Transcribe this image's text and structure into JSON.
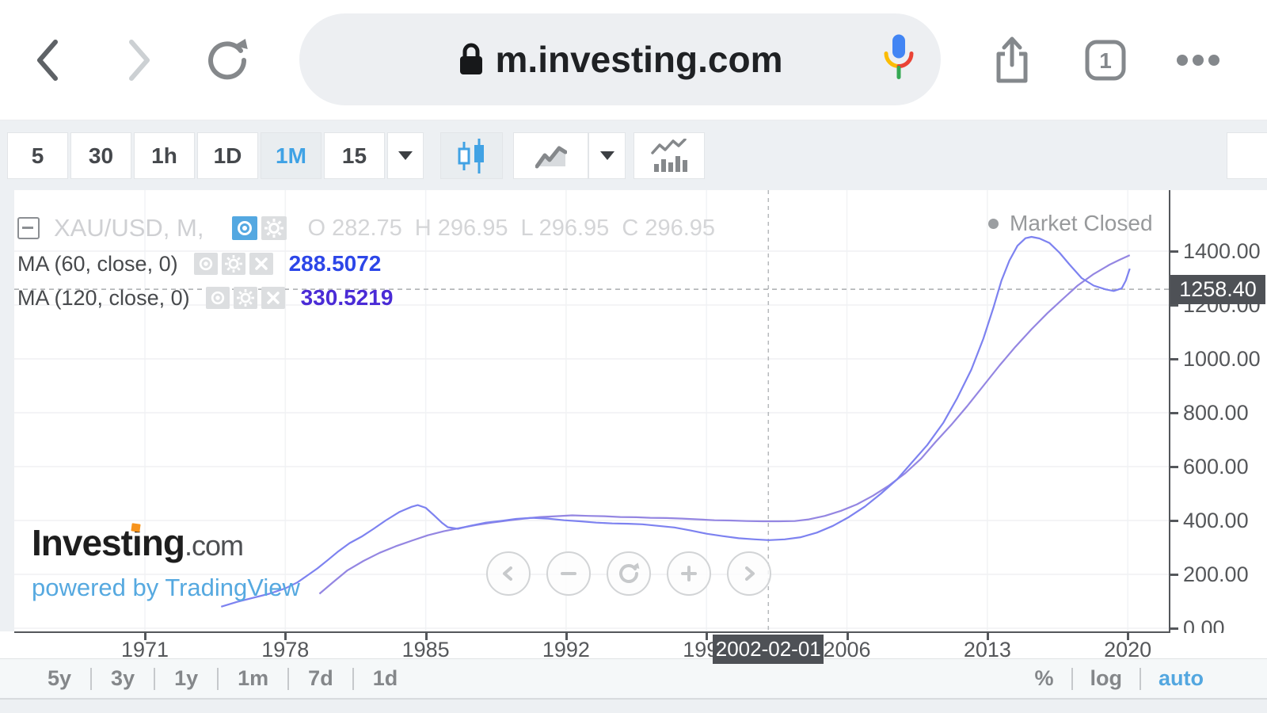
{
  "browser": {
    "url": "m.investing.com",
    "tab_count": "1"
  },
  "intervals_bar": {
    "items": [
      "5",
      "30",
      "1h",
      "1D",
      "1M",
      "15"
    ],
    "selected": "1M"
  },
  "legend": {
    "symbol": "XAU/USD, M,",
    "ohlc": [
      {
        "k": "O",
        "v": "282.75"
      },
      {
        "k": "H",
        "v": "296.95"
      },
      {
        "k": "L",
        "v": "296.95"
      },
      {
        "k": "C",
        "v": "296.95"
      }
    ],
    "indicators": [
      {
        "label": "MA (60, close, 0)",
        "value": "288.5072",
        "value_color": "#2c46e8"
      },
      {
        "label": "MA (120, close, 0)",
        "value": "330.5219",
        "value_color": "#4a2bd6"
      }
    ],
    "market_status": "Market Closed"
  },
  "watermark": {
    "brand_prefix": "Invest",
    "brand_i": "i",
    "brand_rest": "ng",
    "suffix": ".com",
    "powered": "powered by TradingView",
    "accent_color": "#f7941d"
  },
  "chart_data": {
    "type": "line",
    "title": "XAU/USD monthly chart with MA(60) and MA(120) overlays",
    "x_axis": {
      "tick_years": [
        1971,
        1978,
        1985,
        1992,
        1999,
        2006,
        2013,
        2020
      ],
      "range": [
        1964.5,
        2022
      ]
    },
    "y_axis": {
      "tick_values": [
        0,
        200,
        400,
        600,
        800,
        1000,
        1200,
        1400
      ],
      "tick_labels": [
        "0.00",
        "200.00",
        "400.00",
        "600.00",
        "800.00",
        "1000.00",
        "1200.00",
        "1400.00"
      ],
      "range": [
        -12,
        1626
      ]
    },
    "crosshair": {
      "date_label": "2002-02-01",
      "year": 2002.08,
      "price": 1258.4,
      "price_label": "1258.40"
    },
    "series": [
      {
        "name": "MA 60",
        "color": "#7d82f0",
        "points": [
          [
            1974.8,
            80
          ],
          [
            1975.6,
            98
          ],
          [
            1976.4,
            113
          ],
          [
            1977.2,
            128
          ],
          [
            1978.0,
            148
          ],
          [
            1978.6,
            170
          ],
          [
            1979.1,
            196
          ],
          [
            1979.6,
            222
          ],
          [
            1980.1,
            252
          ],
          [
            1980.6,
            283
          ],
          [
            1981.2,
            316
          ],
          [
            1981.8,
            340
          ],
          [
            1982.4,
            369
          ],
          [
            1983.0,
            400
          ],
          [
            1983.7,
            432
          ],
          [
            1984.3,
            451
          ],
          [
            1984.6,
            457
          ],
          [
            1985.0,
            447
          ],
          [
            1985.4,
            420
          ],
          [
            1985.8,
            392
          ],
          [
            1986.1,
            375
          ],
          [
            1986.6,
            369
          ],
          [
            1987.2,
            380
          ],
          [
            1988.0,
            392
          ],
          [
            1988.7,
            398
          ],
          [
            1989.5,
            406
          ],
          [
            1990.3,
            410
          ],
          [
            1991.1,
            407
          ],
          [
            1991.9,
            401
          ],
          [
            1992.7,
            397
          ],
          [
            1993.5,
            392
          ],
          [
            1994.3,
            389
          ],
          [
            1995.1,
            388
          ],
          [
            1995.8,
            386
          ],
          [
            1996.6,
            380
          ],
          [
            1997.4,
            374
          ],
          [
            1998.2,
            363
          ],
          [
            1999.0,
            351
          ],
          [
            1999.8,
            342
          ],
          [
            2000.6,
            334
          ],
          [
            2001.4,
            330
          ],
          [
            2002.1,
            327
          ],
          [
            2002.9,
            330
          ],
          [
            2003.7,
            338
          ],
          [
            2004.5,
            355
          ],
          [
            2005.3,
            380
          ],
          [
            2006.1,
            413
          ],
          [
            2006.9,
            452
          ],
          [
            2007.7,
            500
          ],
          [
            2008.5,
            553
          ],
          [
            2009.2,
            612
          ],
          [
            2010.0,
            680
          ],
          [
            2010.8,
            762
          ],
          [
            2011.5,
            855
          ],
          [
            2012.2,
            960
          ],
          [
            2012.8,
            1075
          ],
          [
            2013.3,
            1190
          ],
          [
            2013.7,
            1290
          ],
          [
            2014.1,
            1365
          ],
          [
            2014.5,
            1420
          ],
          [
            2014.9,
            1448
          ],
          [
            2015.2,
            1453
          ],
          [
            2015.6,
            1447
          ],
          [
            2016.1,
            1430
          ],
          [
            2016.6,
            1394
          ],
          [
            2017.1,
            1350
          ],
          [
            2017.7,
            1300
          ],
          [
            2018.3,
            1272
          ],
          [
            2018.9,
            1258
          ],
          [
            2019.3,
            1252
          ],
          [
            2019.7,
            1262
          ],
          [
            2019.9,
            1290
          ],
          [
            2020.1,
            1335
          ]
        ]
      },
      {
        "name": "MA 120",
        "color": "#9486e2",
        "points": [
          [
            1979.7,
            128
          ],
          [
            1980.4,
            172
          ],
          [
            1981.1,
            215
          ],
          [
            1981.9,
            250
          ],
          [
            1982.7,
            280
          ],
          [
            1983.5,
            304
          ],
          [
            1984.3,
            325
          ],
          [
            1985.1,
            345
          ],
          [
            1985.9,
            360
          ],
          [
            1986.7,
            372
          ],
          [
            1987.5,
            383
          ],
          [
            1988.3,
            392
          ],
          [
            1989.1,
            400
          ],
          [
            1989.9,
            407
          ],
          [
            1990.7,
            413
          ],
          [
            1991.5,
            416
          ],
          [
            1992.3,
            419
          ],
          [
            1993.1,
            417
          ],
          [
            1993.9,
            416
          ],
          [
            1994.7,
            413
          ],
          [
            1995.5,
            412
          ],
          [
            1996.2,
            410
          ],
          [
            1997.0,
            409
          ],
          [
            1997.8,
            407
          ],
          [
            1998.6,
            404
          ],
          [
            1999.4,
            401
          ],
          [
            2000.2,
            400
          ],
          [
            2001.0,
            398
          ],
          [
            2001.8,
            397
          ],
          [
            2002.6,
            397
          ],
          [
            2003.4,
            398
          ],
          [
            2004.1,
            404
          ],
          [
            2004.9,
            417
          ],
          [
            2005.7,
            436
          ],
          [
            2006.5,
            460
          ],
          [
            2007.3,
            492
          ],
          [
            2008.1,
            530
          ],
          [
            2008.9,
            575
          ],
          [
            2009.7,
            630
          ],
          [
            2010.4,
            690
          ],
          [
            2011.2,
            755
          ],
          [
            2012.0,
            825
          ],
          [
            2012.8,
            900
          ],
          [
            2013.6,
            975
          ],
          [
            2014.4,
            1045
          ],
          [
            2015.2,
            1110
          ],
          [
            2016.0,
            1170
          ],
          [
            2016.8,
            1225
          ],
          [
            2017.5,
            1272
          ],
          [
            2018.3,
            1315
          ],
          [
            2019.1,
            1350
          ],
          [
            2019.6,
            1368
          ],
          [
            2020.1,
            1385
          ]
        ]
      }
    ],
    "legend_entries": [
      "XAU/USD monthly",
      "MA (60, close, 0) = 288.5072",
      "MA (120, close, 0) = 330.5219"
    ],
    "grid": true
  },
  "bottom_bar": {
    "ranges": [
      "5y",
      "3y",
      "1y",
      "1m",
      "7d",
      "1d"
    ],
    "scales": [
      "%",
      "log",
      "auto"
    ],
    "active_scale": "auto"
  }
}
